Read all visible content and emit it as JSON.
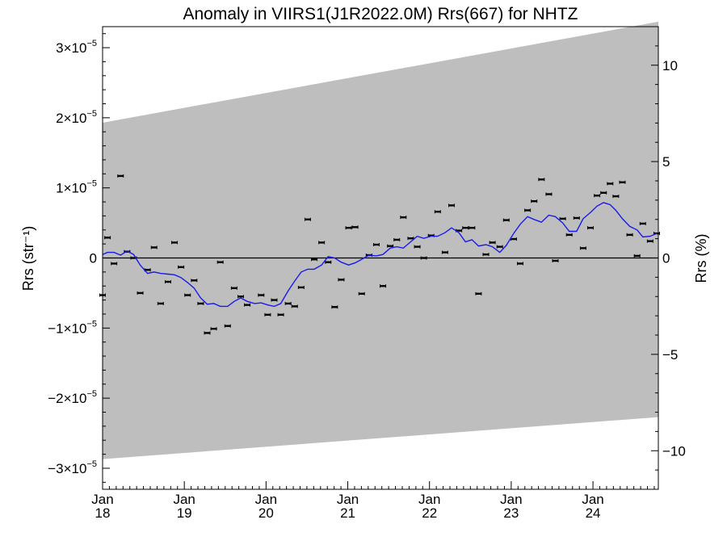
{
  "chart_data": {
    "type": "scatter",
    "title": "Anomaly in VIIRS1(J1R2022.0M) Rrs(667) for NHTZ",
    "ylabel": "Rrs (str⁻¹)",
    "ylabel_right": "Rrs (%)",
    "xlim": [
      2018.0,
      2024.8
    ],
    "ylim": [
      -3.3e-05,
      3.3e-05
    ],
    "ylim_right": [
      -12,
      12
    ],
    "x_ticks": [
      {
        "x": 2018,
        "month": "Jan",
        "year": "18"
      },
      {
        "x": 2019,
        "month": "Jan",
        "year": "19"
      },
      {
        "x": 2020,
        "month": "Jan",
        "year": "20"
      },
      {
        "x": 2021,
        "month": "Jan",
        "year": "21"
      },
      {
        "x": 2022,
        "month": "Jan",
        "year": "22"
      },
      {
        "x": 2023,
        "month": "Jan",
        "year": "23"
      },
      {
        "x": 2024,
        "month": "Jan",
        "year": "24"
      }
    ],
    "y_ticks_left": [
      {
        "value": 3e-05,
        "base": "3×10",
        "exp": "−5"
      },
      {
        "value": 2e-05,
        "base": "2×10",
        "exp": "−5"
      },
      {
        "value": 1e-05,
        "base": "1×10",
        "exp": "−5"
      },
      {
        "value": 0,
        "base": "0",
        "exp": ""
      },
      {
        "value": -1e-05,
        "base": "−1×10",
        "exp": "−5"
      },
      {
        "value": -2e-05,
        "base": "−2×10",
        "exp": "−5"
      },
      {
        "value": -3e-05,
        "base": "−3×10",
        "exp": "−5"
      }
    ],
    "y_ticks_right": [
      {
        "value": 10,
        "label": "10"
      },
      {
        "value": 5,
        "label": "5"
      },
      {
        "value": 0,
        "label": "0"
      },
      {
        "value": -5,
        "label": "−5"
      },
      {
        "value": -10,
        "label": "−10"
      }
    ],
    "band": {
      "upper": [
        [
          2018.0,
          1.93e-05
        ],
        [
          2024.8,
          3.37e-05
        ]
      ],
      "lower": [
        [
          2018.0,
          -2.87e-05
        ],
        [
          2024.8,
          -2.27e-05
        ]
      ],
      "color": "#bebebe"
    },
    "zero_line": true,
    "points": [
      [
        2018.0,
        -5.3e-06
      ],
      [
        2018.06,
        2.9e-06
      ],
      [
        2018.14,
        -8e-07
      ],
      [
        2018.22,
        1.17e-05
      ],
      [
        2018.3,
        9e-07
      ],
      [
        2018.38,
        0
      ],
      [
        2018.46,
        -5e-06
      ],
      [
        2018.55,
        -1.7e-06
      ],
      [
        2018.63,
        1.5e-06
      ],
      [
        2018.71,
        -6.5e-06
      ],
      [
        2018.8,
        -3.4e-06
      ],
      [
        2018.88,
        2.2e-06
      ],
      [
        2018.96,
        -1.3e-06
      ],
      [
        2019.04,
        -5.3e-06
      ],
      [
        2019.12,
        -3.2e-06
      ],
      [
        2019.2,
        -6.5e-06
      ],
      [
        2019.28,
        -1.07e-05
      ],
      [
        2019.36,
        -1.01e-05
      ],
      [
        2019.44,
        -6e-07
      ],
      [
        2019.53,
        -9.7e-06
      ],
      [
        2019.61,
        -4.3e-06
      ],
      [
        2019.69,
        -5.5e-06
      ],
      [
        2019.77,
        -6.7e-06
      ],
      [
        2019.94,
        -5.3e-06
      ],
      [
        2020.02,
        -8.1e-06
      ],
      [
        2020.1,
        -6e-06
      ],
      [
        2020.18,
        -8.1e-06
      ],
      [
        2020.27,
        -6.5e-06
      ],
      [
        2020.35,
        -6.9e-06
      ],
      [
        2020.43,
        -4.2e-06
      ],
      [
        2020.51,
        5.5e-06
      ],
      [
        2020.59,
        -2e-07
      ],
      [
        2020.68,
        2.2e-06
      ],
      [
        2020.76,
        -6e-07
      ],
      [
        2020.84,
        -7e-06
      ],
      [
        2020.92,
        -3.1e-06
      ],
      [
        2021.01,
        4.3e-06
      ],
      [
        2021.09,
        4.4e-06
      ],
      [
        2021.17,
        -5.1e-06
      ],
      [
        2021.26,
        4e-07
      ],
      [
        2021.35,
        1.9e-06
      ],
      [
        2021.43,
        -4e-06
      ],
      [
        2021.52,
        1.7e-06
      ],
      [
        2021.6,
        2.6e-06
      ],
      [
        2021.68,
        5.8e-06
      ],
      [
        2021.77,
        2.8e-06
      ],
      [
        2021.85,
        1.6e-06
      ],
      [
        2021.93,
        0
      ],
      [
        2022.02,
        3.2e-06
      ],
      [
        2022.1,
        6.6e-06
      ],
      [
        2022.19,
        8e-07
      ],
      [
        2022.27,
        7.5e-06
      ],
      [
        2022.36,
        3.9e-06
      ],
      [
        2022.44,
        4.3e-06
      ],
      [
        2022.52,
        4.3e-06
      ],
      [
        2022.6,
        -5.1e-06
      ],
      [
        2022.69,
        5e-07
      ],
      [
        2022.77,
        2.2e-06
      ],
      [
        2022.86,
        1.6e-06
      ],
      [
        2022.94,
        5.4e-06
      ],
      [
        2023.03,
        2.7e-06
      ],
      [
        2023.11,
        -8e-07
      ],
      [
        2023.2,
        6.8e-06
      ],
      [
        2023.28,
        8.1e-06
      ],
      [
        2023.37,
        1.12e-05
      ],
      [
        2023.46,
        9.1e-06
      ],
      [
        2023.54,
        -4e-07
      ],
      [
        2023.63,
        5.6e-06
      ],
      [
        2023.71,
        3.3e-06
      ],
      [
        2023.8,
        5.7e-06
      ],
      [
        2023.88,
        1.4e-06
      ],
      [
        2023.97,
        4.3e-06
      ],
      [
        2024.05,
        8.9e-06
      ],
      [
        2024.13,
        9.3e-06
      ],
      [
        2024.21,
        1.06e-05
      ],
      [
        2024.28,
        8.8e-06
      ],
      [
        2024.36,
        1.08e-05
      ],
      [
        2024.45,
        3.3e-06
      ],
      [
        2024.54,
        3e-07
      ],
      [
        2024.61,
        4.9e-06
      ],
      [
        2024.7,
        2.4e-06
      ],
      [
        2024.78,
        3.5e-06
      ]
    ],
    "line": [
      [
        2018.0,
        5e-07
      ],
      [
        2018.06,
        8e-07
      ],
      [
        2018.14,
        8e-07
      ],
      [
        2018.22,
        4e-07
      ],
      [
        2018.3,
        1e-06
      ],
      [
        2018.38,
        5e-07
      ],
      [
        2018.46,
        -1e-06
      ],
      [
        2018.55,
        -2.2e-06
      ],
      [
        2018.63,
        -2e-06
      ],
      [
        2018.71,
        -2.2e-06
      ],
      [
        2018.8,
        -2.3e-06
      ],
      [
        2018.88,
        -2.4e-06
      ],
      [
        2018.96,
        -2.8e-06
      ],
      [
        2019.04,
        -3.5e-06
      ],
      [
        2019.12,
        -4.3e-06
      ],
      [
        2019.2,
        -5.7e-06
      ],
      [
        2019.28,
        -6.6e-06
      ],
      [
        2019.36,
        -6.5e-06
      ],
      [
        2019.44,
        -6.9e-06
      ],
      [
        2019.53,
        -6.9e-06
      ],
      [
        2019.61,
        -6.2e-06
      ],
      [
        2019.69,
        -5.7e-06
      ],
      [
        2019.77,
        -6.2e-06
      ],
      [
        2019.86,
        -6.5e-06
      ],
      [
        2019.94,
        -6.4e-06
      ],
      [
        2020.02,
        -6.7e-06
      ],
      [
        2020.1,
        -6.9e-06
      ],
      [
        2020.18,
        -6.5e-06
      ],
      [
        2020.27,
        -4.7e-06
      ],
      [
        2020.35,
        -3.3e-06
      ],
      [
        2020.43,
        -2e-06
      ],
      [
        2020.51,
        -1.6e-06
      ],
      [
        2020.59,
        -1.6e-06
      ],
      [
        2020.68,
        -1e-06
      ],
      [
        2020.76,
        2e-07
      ],
      [
        2020.84,
        0
      ],
      [
        2020.92,
        -6e-07
      ],
      [
        2021.01,
        -1e-06
      ],
      [
        2021.09,
        -7e-07
      ],
      [
        2021.17,
        -2e-07
      ],
      [
        2021.26,
        4e-07
      ],
      [
        2021.35,
        3e-07
      ],
      [
        2021.43,
        5e-07
      ],
      [
        2021.52,
        1.4e-06
      ],
      [
        2021.6,
        1.6e-06
      ],
      [
        2021.68,
        1.4e-06
      ],
      [
        2021.77,
        2.3e-06
      ],
      [
        2021.85,
        3.1e-06
      ],
      [
        2021.93,
        2.8e-06
      ],
      [
        2022.02,
        3.1e-06
      ],
      [
        2022.1,
        3.1e-06
      ],
      [
        2022.19,
        3.6e-06
      ],
      [
        2022.27,
        4.3e-06
      ],
      [
        2022.36,
        3.6e-06
      ],
      [
        2022.44,
        2.3e-06
      ],
      [
        2022.52,
        2.6e-06
      ],
      [
        2022.6,
        1.7e-06
      ],
      [
        2022.69,
        1.9e-06
      ],
      [
        2022.77,
        1.6e-06
      ],
      [
        2022.86,
        8e-07
      ],
      [
        2022.94,
        1.8e-06
      ],
      [
        2023.03,
        3.5e-06
      ],
      [
        2023.11,
        4.8e-06
      ],
      [
        2023.2,
        5.9e-06
      ],
      [
        2023.28,
        5.5e-06
      ],
      [
        2023.37,
        5.1e-06
      ],
      [
        2023.46,
        6.1e-06
      ],
      [
        2023.54,
        5.9e-06
      ],
      [
        2023.63,
        5e-06
      ],
      [
        2023.71,
        3.8e-06
      ],
      [
        2023.8,
        3.8e-06
      ],
      [
        2023.88,
        5.6e-06
      ],
      [
        2023.97,
        6.5e-06
      ],
      [
        2024.05,
        7.4e-06
      ],
      [
        2024.13,
        7.9e-06
      ],
      [
        2024.21,
        7.6e-06
      ],
      [
        2024.28,
        6.8e-06
      ],
      [
        2024.36,
        5.6e-06
      ],
      [
        2024.45,
        4.5e-06
      ],
      [
        2024.54,
        4e-06
      ],
      [
        2024.61,
        3e-06
      ],
      [
        2024.7,
        3.1e-06
      ],
      [
        2024.78,
        3.5e-06
      ]
    ],
    "line_color": "#1a1aee",
    "point_color": "#000000"
  }
}
